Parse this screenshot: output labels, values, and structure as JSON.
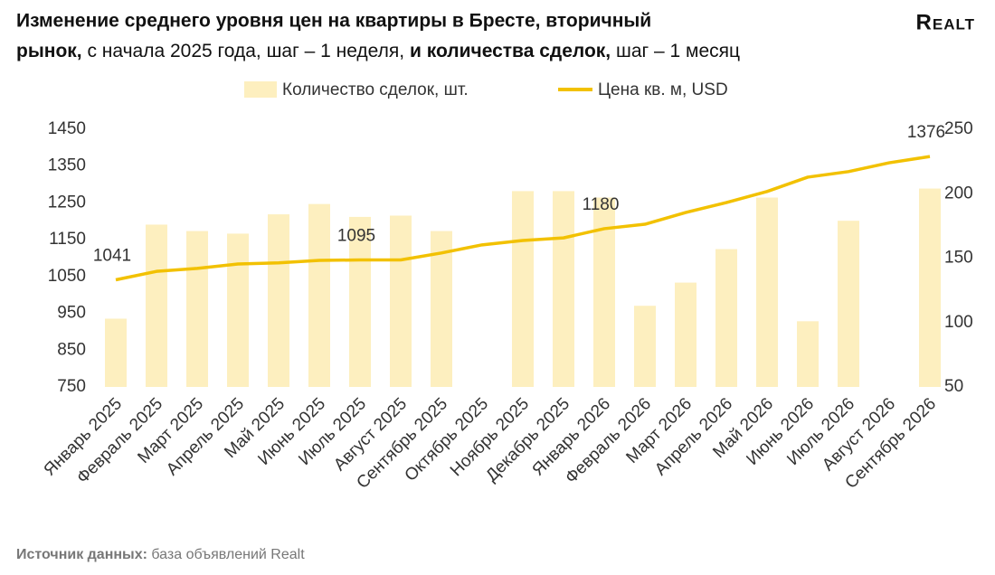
{
  "title": [
    "Изменение среднего уровня цен на квартиры в Бресте, вторичный",
    "рынок,",
    " с начала 2025 года, шаг – 1 неделя, ",
    "и количества сделок,",
    " шаг – 1 месяц"
  ],
  "logo": "Realt",
  "source": [
    "Источник данных:",
    " база объявлений Realt"
  ],
  "chart_data": {
    "type": "bar+line",
    "categories": [
      "Январь 2025",
      "Февраль 2025",
      "Март 2025",
      "Апрель 2025",
      "Май 2025",
      "Июнь 2025",
      "Июль 2025",
      "Август 2025",
      "Сентябрь 2025",
      "Октябрь 2025",
      "Ноябрь 2025",
      "Декабрь 2025",
      "Январь 2026",
      "Февраль 2026",
      "Март 2026",
      "Апрель 2026",
      "Май 2026",
      "Июнь 2026",
      "Июль 2026",
      "Август 2026",
      "Сентябрь 2026"
    ],
    "series": [
      {
        "name": "Количество сделок, шт.",
        "type": "bar",
        "axis": "y2",
        "color": "#fdefbf",
        "values": [
          103,
          176,
          171,
          169,
          184,
          192,
          182,
          183,
          171,
          null,
          202,
          202,
          197,
          113,
          131,
          157,
          197,
          101,
          179,
          null,
          204
        ]
      },
      {
        "name": "Цена кв. м, USD",
        "type": "line",
        "axis": "y",
        "color": "#f2c100",
        "values": [
          1041,
          1064,
          1072,
          1084,
          1087,
          1094,
          1095,
          1095,
          1114,
          1136,
          1148,
          1155,
          1180,
          1192,
          1224,
          1251,
          1281,
          1320,
          1335,
          1359,
          1376
        ],
        "value_labels": [
          "1041",
          null,
          null,
          null,
          null,
          null,
          "1095",
          null,
          null,
          null,
          null,
          null,
          "1180",
          null,
          null,
          null,
          null,
          null,
          null,
          null,
          "1376"
        ]
      }
    ],
    "ylim": [
      750,
      1450
    ],
    "yticks": [
      750,
      850,
      950,
      1050,
      1150,
      1250,
      1350,
      1450
    ],
    "y2lim": [
      50,
      250
    ],
    "y2ticks": [
      50,
      100,
      150,
      200,
      250
    ],
    "legend": "top",
    "grid": false
  }
}
